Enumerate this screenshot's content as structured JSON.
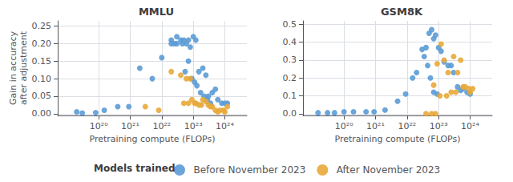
{
  "chart_data": [
    {
      "type": "scatter",
      "title": "MMLU",
      "xlabel": "Pretraining compute (FLOPs)",
      "ylabel": "Gain in accuracy\nafter adjustment",
      "log": "x",
      "grid": true,
      "legend": "bottom",
      "xlim": [
        5e+18,
        5e+24
      ],
      "xticks": [
        {
          "value": 1e+20,
          "label": "10²⁰"
        },
        {
          "value": 1e+21,
          "label": "10²¹"
        },
        {
          "value": 1e+22,
          "label": "10²²"
        },
        {
          "value": 1e+23,
          "label": "10²³"
        },
        {
          "value": 1e+24,
          "label": "10²⁴"
        }
      ],
      "ylim": [
        -0.005,
        0.265
      ],
      "yticks": [
        {
          "value": 0,
          "label": "0.00"
        },
        0.05,
        {
          "value": 0.1,
          "label": "0.10"
        },
        0.15,
        {
          "value": 0.2,
          "label": "0.20"
        },
        0.25
      ],
      "series": [
        {
          "name": "Before November 2023",
          "color": "#5B9BD5",
          "x": [
            2e+19,
            3e+19,
            8e+19,
            1.5e+20,
            4e+20,
            9e+20,
            2e+21,
            5e+21,
            1e+22,
            2e+22,
            3e+22,
            4e+22,
            5e+22,
            6e+22,
            7e+22,
            8e+22,
            1e+23,
            1.2e+23,
            1.5e+23,
            2e+23,
            2.5e+23,
            3e+23,
            4e+23,
            5e+23,
            6e+23,
            8e+23,
            1e+24,
            1.2e+24,
            2e+22,
            2.5e+22,
            3e+22,
            4.5e+22,
            5.5e+22,
            7e+22,
            9e+22,
            1.1e+23,
            1.3e+23,
            1.7e+23,
            2.2e+23,
            2.8e+23,
            3.5e+23
          ],
          "values": [
            0.005,
            0.002,
            0.003,
            0.01,
            0.02,
            0.02,
            0.13,
            0.1,
            0.16,
            0.21,
            0.2,
            0.21,
            0.21,
            0.2,
            0.21,
            0.19,
            0.22,
            0.21,
            0.12,
            0.13,
            0.11,
            0.05,
            0.06,
            0.07,
            0.04,
            0.03,
            0.03,
            0.03,
            0.2,
            0.2,
            0.22,
            0.2,
            0.12,
            0.15,
            0.1,
            0.09,
            0.08,
            0.06,
            0.05,
            0.04,
            0.03
          ]
        },
        {
          "name": "After November 2023",
          "color": "#E8A838",
          "x": [
            3e+21,
            8e+21,
            2e+22,
            4e+22,
            6e+22,
            8e+22,
            1.2e+23,
            1.5e+23,
            2e+23,
            2.5e+23,
            3e+23,
            4e+23,
            5e+23,
            7e+23,
            9e+23,
            1.2e+24,
            5e+22,
            7e+22,
            9e+22,
            1.1e+23,
            1.8e+23,
            3.5e+23,
            6e+23,
            1e+24
          ],
          "values": [
            0.02,
            0.01,
            0.12,
            0.11,
            0.1,
            0.1,
            0.03,
            0.025,
            0.04,
            0.035,
            0.025,
            0.02,
            0.01,
            0.01,
            0.01,
            0.02,
            0.03,
            0.03,
            0.04,
            0.03,
            0.025,
            0.02,
            0.005,
            0.005
          ]
        }
      ]
    },
    {
      "type": "scatter",
      "title": "GSM8K",
      "xlabel": "Pretraining compute (FLOPs)",
      "log": "x",
      "grid": true,
      "legend": "bottom",
      "xlim": [
        5e+18,
        5e+24
      ],
      "xticks": [
        {
          "value": 1e+20,
          "label": "10²⁰"
        },
        {
          "value": 1e+21,
          "label": "10²¹"
        },
        {
          "value": 1e+22,
          "label": "10²²"
        },
        {
          "value": 1e+23,
          "label": "10²³"
        },
        {
          "value": 1e+24,
          "label": "10²⁴"
        }
      ],
      "ylim": [
        -0.01,
        0.52
      ],
      "yticks": [
        {
          "value": 0,
          "label": "0.0"
        },
        0.1,
        0.2,
        0.3,
        0.4,
        0.5
      ],
      "series": [
        {
          "name": "Before November 2023",
          "color": "#5B9BD5",
          "x": [
            1.5e+19,
            3e+19,
            5e+19,
            1e+20,
            2e+20,
            5e+20,
            9e+20,
            2e+21,
            5e+21,
            9e+21,
            1.5e+22,
            2e+22,
            3e+22,
            4e+22,
            5e+22,
            6e+22,
            7e+22,
            8e+22,
            1e+23,
            1.2e+23,
            1.5e+23,
            2e+23,
            2.5e+23,
            3e+23,
            4e+23,
            5e+23,
            6e+23,
            8e+23,
            1e+24,
            3.5e+22,
            4.5e+22,
            5.5e+22,
            7e+22,
            9e+22
          ],
          "values": [
            0.005,
            0.005,
            0.005,
            0.01,
            0.01,
            0.01,
            0.01,
            0.02,
            0.07,
            0.11,
            0.2,
            0.23,
            0.36,
            0.37,
            0.45,
            0.47,
            0.42,
            0.44,
            0.37,
            0.35,
            0.29,
            0.27,
            0.27,
            0.23,
            0.15,
            0.13,
            0.14,
            0.12,
            0.11,
            0.32,
            0.27,
            0.2,
            0.12,
            0.11
          ]
        },
        {
          "name": "After November 2023",
          "color": "#E8A838",
          "x": [
            4e+22,
            7e+22,
            9e+22,
            1.2e+23,
            1.5e+23,
            2e+23,
            2.5e+23,
            3e+23,
            4e+23,
            5e+23,
            7e+23,
            9e+23,
            1.2e+24,
            6e+22,
            8e+22,
            1.1e+23,
            1.8e+23,
            3.5e+23,
            6e+23,
            1e+24
          ],
          "values": [
            0.0,
            0.16,
            0.28,
            0.39,
            0.3,
            0.23,
            0.12,
            0.32,
            0.23,
            0.3,
            0.15,
            0.14,
            0.14,
            0.0,
            0.0,
            0.1,
            0.1,
            0.12,
            0.15,
            0.12
          ]
        }
      ]
    }
  ],
  "legend_title": "Models trained"
}
